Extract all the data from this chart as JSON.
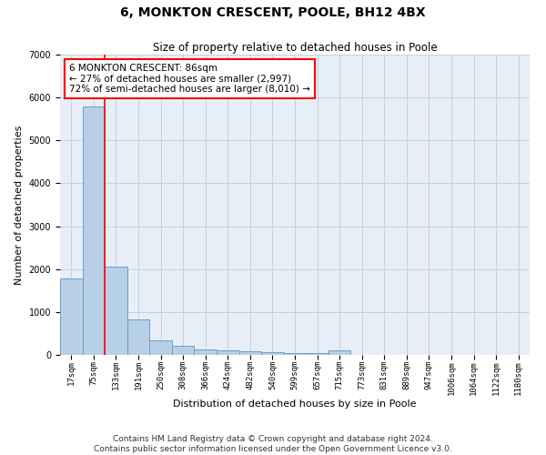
{
  "title": "6, MONKTON CRESCENT, POOLE, BH12 4BX",
  "subtitle": "Size of property relative to detached houses in Poole",
  "xlabel": "Distribution of detached houses by size in Poole",
  "ylabel": "Number of detached properties",
  "bar_labels": [
    "17sqm",
    "75sqm",
    "133sqm",
    "191sqm",
    "250sqm",
    "308sqm",
    "366sqm",
    "424sqm",
    "482sqm",
    "540sqm",
    "599sqm",
    "657sqm",
    "715sqm",
    "773sqm",
    "831sqm",
    "889sqm",
    "947sqm",
    "1006sqm",
    "1064sqm",
    "1122sqm",
    "1180sqm"
  ],
  "bar_values": [
    1780,
    5800,
    2060,
    820,
    340,
    220,
    130,
    110,
    75,
    60,
    50,
    40,
    110,
    0,
    0,
    0,
    0,
    0,
    0,
    0,
    0
  ],
  "bar_color": "#b8cfe8",
  "bar_edge_color": "#6a9fc8",
  "property_line_x": 1.5,
  "annotation_text": "6 MONKTON CRESCENT: 86sqm\n← 27% of detached houses are smaller (2,997)\n72% of semi-detached houses are larger (8,010) →",
  "annotation_box_color": "white",
  "annotation_box_edge_color": "red",
  "ylim": [
    0,
    7000
  ],
  "yticks": [
    0,
    1000,
    2000,
    3000,
    4000,
    5000,
    6000,
    7000
  ],
  "grid_color": "#c8d0dc",
  "bg_color": "#e8eef8",
  "footer_line1": "Contains HM Land Registry data © Crown copyright and database right 2024.",
  "footer_line2": "Contains public sector information licensed under the Open Government Licence v3.0.",
  "title_fontsize": 10,
  "subtitle_fontsize": 8.5,
  "axis_label_fontsize": 8,
  "tick_fontsize": 6.5,
  "annotation_fontsize": 7.5,
  "footer_fontsize": 6.5
}
